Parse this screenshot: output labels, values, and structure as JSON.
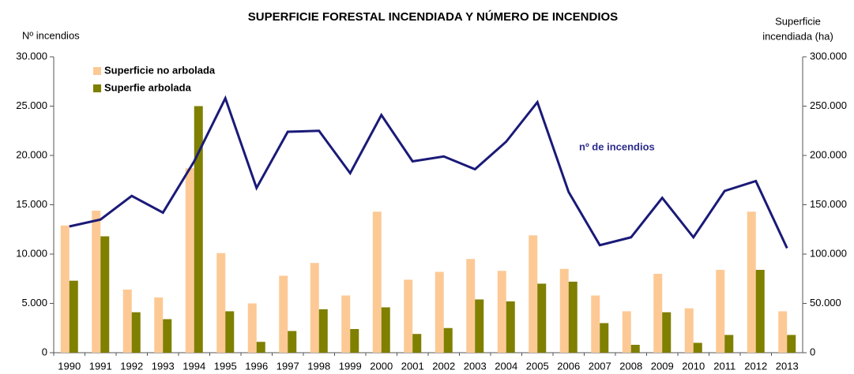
{
  "chart_data": {
    "type": "bar",
    "title": "SUPERFICIE FORESTAL INCENDIADA Y NÚMERO DE INCENDIOS",
    "ylabel": "Nº incendios",
    "y2label": [
      "Superficie",
      "incendiada (ha)"
    ],
    "annotation": "nº de incendios",
    "categories": [
      "1990",
      "1991",
      "1992",
      "1993",
      "1994",
      "1995",
      "1996",
      "1997",
      "1998",
      "1999",
      "2000",
      "2001",
      "2002",
      "2003",
      "2004",
      "2005",
      "2006",
      "2007",
      "2008",
      "2009",
      "2010",
      "2011",
      "2012",
      "2013"
    ],
    "series": [
      {
        "name": "Superficie no arbolada",
        "type": "bar",
        "axis": "y2",
        "color": "#fcc995",
        "values": [
          129000,
          144000,
          64000,
          56000,
          187000,
          101000,
          50000,
          78000,
          91000,
          58000,
          143000,
          74000,
          82000,
          95000,
          83000,
          119000,
          85000,
          58000,
          42000,
          80000,
          45000,
          84000,
          143000,
          42000
        ]
      },
      {
        "name": "Superfie arbolada",
        "type": "bar",
        "axis": "y2",
        "color": "#7f7f00",
        "values": [
          73000,
          118000,
          41000,
          34000,
          250000,
          42000,
          11000,
          22000,
          44000,
          24000,
          46000,
          19000,
          25000,
          54000,
          52000,
          70000,
          72000,
          30000,
          8000,
          41000,
          10000,
          18000,
          84000,
          18000
        ]
      },
      {
        "name": null,
        "type": "line",
        "axis": "y",
        "color": "#1a1a78",
        "values": [
          12800,
          13500,
          15900,
          14200,
          19400,
          25800,
          16700,
          22400,
          22500,
          18200,
          24100,
          19400,
          19900,
          18600,
          21400,
          25400,
          16300,
          10900,
          11700,
          15700,
          11700,
          16400,
          17400,
          10600
        ]
      }
    ],
    "ylim": [
      0,
      30000
    ],
    "yticks": [
      {
        "value": 0,
        "label": "0"
      },
      {
        "value": 5000,
        "label": "5.000"
      },
      {
        "value": 10000,
        "label": "10.000"
      },
      {
        "value": 15000,
        "label": "15.000"
      },
      {
        "value": 20000,
        "label": "20.000"
      },
      {
        "value": 25000,
        "label": "25.000"
      },
      {
        "value": 30000,
        "label": "30.000"
      }
    ],
    "y2lim": [
      0,
      300000
    ],
    "y2ticks": [
      {
        "value": 0,
        "label": "0"
      },
      {
        "value": 50000,
        "label": "50.000"
      },
      {
        "value": 100000,
        "label": "100.000"
      },
      {
        "value": 150000,
        "label": "150.000"
      },
      {
        "value": 200000,
        "label": "200.000"
      },
      {
        "value": 250000,
        "label": "250.000"
      },
      {
        "value": 300000,
        "label": "300.000"
      }
    ],
    "grid": false,
    "legend": "upper left"
  }
}
